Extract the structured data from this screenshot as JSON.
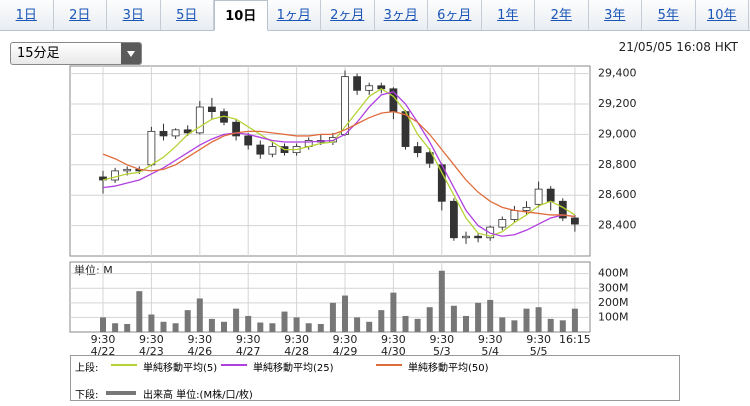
{
  "tabs": [
    "1日",
    "2日",
    "3日",
    "5日",
    "10日",
    "1ヶ月",
    "2ヶ月",
    "3ヶ月",
    "6ヶ月",
    "1年",
    "2年",
    "3年",
    "5年",
    "10年"
  ],
  "active_tab": 4,
  "interval": "15分足",
  "timestamp": "21/05/05 16:08 HKT",
  "legend": {
    "upper_label": "上段:",
    "lower_label": "下段:"
  },
  "chart_data": [
    {
      "type": "candlestick",
      "categories": [
        "9:30\n4/22",
        null,
        null,
        null,
        "9:30\n4/23",
        null,
        null,
        null,
        "9:30\n4/26",
        null,
        null,
        null,
        "9:30\n4/27",
        null,
        null,
        null,
        "9:30\n4/28",
        null,
        null,
        null,
        "9:30\n4/29",
        null,
        null,
        null,
        "9:30\n4/30",
        null,
        null,
        null,
        "9:30\n5/3",
        null,
        null,
        null,
        "9:30\n5/4",
        null,
        null,
        null,
        "9:30\n5/5",
        null,
        null,
        "16:15"
      ],
      "open": [
        28720,
        28700,
        28760,
        28770,
        28800,
        29020,
        28990,
        29030,
        29010,
        29180,
        29150,
        29080,
        28990,
        28930,
        28870,
        28920,
        28880,
        28920,
        28960,
        28950,
        29000,
        29380,
        29290,
        29320,
        29300,
        29150,
        28920,
        28880,
        28800,
        28560,
        28320,
        28330,
        28320,
        28390,
        28440,
        28500,
        28540,
        28640,
        28560,
        28450
      ],
      "high": [
        28760,
        28780,
        28790,
        28790,
        29050,
        29070,
        29040,
        29060,
        29220,
        29240,
        29170,
        29100,
        29010,
        28960,
        28950,
        28940,
        28940,
        28980,
        29000,
        29010,
        29420,
        29400,
        29340,
        29340,
        29310,
        29160,
        28950,
        28910,
        28810,
        28580,
        28360,
        28350,
        28400,
        28460,
        28530,
        28560,
        28690,
        28660,
        28580,
        28470
      ],
      "low": [
        28610,
        28680,
        28730,
        28740,
        28790,
        28960,
        28970,
        28990,
        29000,
        29100,
        29060,
        28960,
        28900,
        28840,
        28850,
        28860,
        28860,
        28900,
        28930,
        28930,
        28990,
        29260,
        29260,
        29270,
        29100,
        28900,
        28850,
        28780,
        28500,
        28300,
        28280,
        28290,
        28300,
        28370,
        28420,
        28470,
        28520,
        28500,
        28430,
        28360
      ],
      "close": [
        28700,
        28760,
        28770,
        28760,
        29020,
        28990,
        29030,
        29010,
        29180,
        29150,
        29080,
        28990,
        28930,
        28870,
        28920,
        28880,
        28920,
        28960,
        28950,
        28980,
        29380,
        29290,
        29320,
        29300,
        29150,
        28920,
        28880,
        28810,
        28560,
        28320,
        28330,
        28320,
        28390,
        28440,
        28500,
        28520,
        28640,
        28560,
        28450,
        28410
      ],
      "up_color": "#ffffff",
      "down_color": "#333333",
      "wick_color": "#333333",
      "series": [
        {
          "name": "単純移動平均(5)",
          "color": "#b5d334",
          "values": [
            28700,
            28720,
            28740,
            28750,
            28800,
            28850,
            28920,
            29000,
            29050,
            29100,
            29120,
            29100,
            29050,
            29000,
            28950,
            28900,
            28900,
            28920,
            28940,
            28950,
            29050,
            29150,
            29250,
            29300,
            29250,
            29150,
            29000,
            28900,
            28750,
            28600,
            28450,
            28350,
            28330,
            28360,
            28420,
            28470,
            28530,
            28560,
            28520,
            28470
          ]
        },
        {
          "name": "単純移動平均(25)",
          "color": "#b03fe0",
          "values": [
            28650,
            28660,
            28680,
            28700,
            28740,
            28780,
            28830,
            28880,
            28930,
            28970,
            29000,
            29010,
            29000,
            28980,
            28960,
            28950,
            28950,
            28950,
            28955,
            28960,
            29000,
            29080,
            29180,
            29260,
            29280,
            29200,
            29080,
            28950,
            28800,
            28650,
            28500,
            28400,
            28350,
            28330,
            28340,
            28370,
            28410,
            28450,
            28470,
            28460
          ]
        },
        {
          "name": "単純移動平均(50)",
          "color": "#e06c3c",
          "values": [
            28870,
            28840,
            28800,
            28770,
            28760,
            28770,
            28800,
            28850,
            28900,
            28950,
            28990,
            29010,
            29020,
            29020,
            29010,
            29000,
            28990,
            28990,
            29000,
            29000,
            29030,
            29070,
            29110,
            29140,
            29150,
            29130,
            29080,
            29000,
            28900,
            28800,
            28700,
            28620,
            28560,
            28520,
            28500,
            28490,
            28480,
            28470,
            28470,
            28460
          ]
        }
      ],
      "ylim": [
        28200,
        29450
      ],
      "yticks": [
        {
          "value": 28400,
          "label": "28,400"
        },
        {
          "value": 28600,
          "label": "28,600"
        },
        {
          "value": 28800,
          "label": "28,800"
        },
        {
          "value": 29000,
          "label": "29,000"
        },
        {
          "value": 29200,
          "label": "29,200"
        },
        {
          "value": 29400,
          "label": "29,400"
        }
      ],
      "grid": true
    },
    {
      "type": "bar",
      "y_label": "単位: M",
      "series": [
        {
          "name": "出来高 単位:(M株/口/枚)",
          "color": "#777777",
          "values": [
            100,
            60,
            55,
            280,
            120,
            70,
            60,
            150,
            230,
            90,
            70,
            160,
            110,
            65,
            60,
            140,
            100,
            60,
            55,
            200,
            250,
            100,
            70,
            150,
            270,
            110,
            90,
            170,
            420,
            180,
            110,
            200,
            220,
            100,
            80,
            160,
            170,
            90,
            80,
            160
          ]
        }
      ],
      "ylim": [
        0,
        480
      ],
      "yticks": [
        {
          "value": 100,
          "label": "100M"
        },
        {
          "value": 200,
          "label": "200M"
        },
        {
          "value": 300,
          "label": "300M"
        },
        {
          "value": 400,
          "label": "400M"
        }
      ],
      "grid": true
    }
  ]
}
